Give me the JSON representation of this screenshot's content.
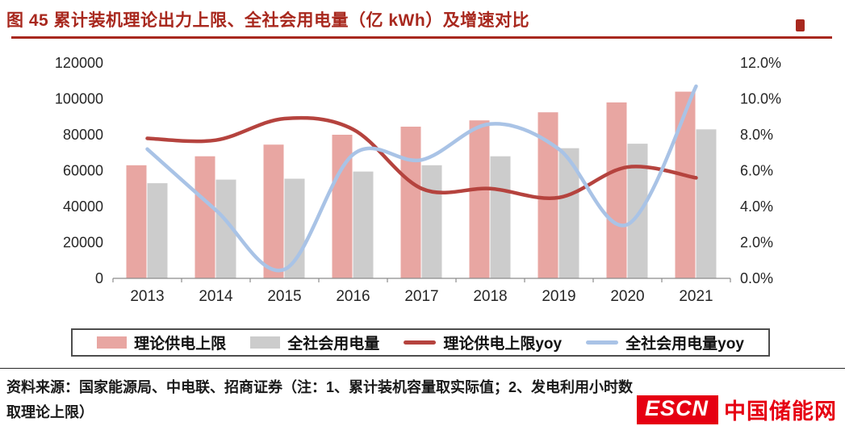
{
  "title": "图 45  累计装机理论出力上限、全社会用电量（亿 kWh）及增速对比",
  "colors": {
    "title_red": "#a8281e",
    "bar_pink": "#e8a6a2",
    "bar_gray": "#cccccc",
    "line_red": "#b5433e",
    "line_blue": "#a9c3e6",
    "logo_red": "#e60012",
    "axis_text": "#262626",
    "axis_line": "#8c8c8c"
  },
  "chart_data": {
    "type": "combo-bar-line",
    "title": "累计装机理论出力上限、全社会用电量（亿 kWh）及增速对比",
    "categories": [
      "2013",
      "2014",
      "2015",
      "2016",
      "2017",
      "2018",
      "2019",
      "2020",
      "2021"
    ],
    "series": [
      {
        "name": "理论供电上限",
        "type": "bar",
        "axis": "left",
        "color": "#e8a6a2",
        "values": [
          63000,
          68000,
          74500,
          80000,
          84500,
          88000,
          92500,
          98000,
          104000
        ]
      },
      {
        "name": "全社会用电量",
        "type": "bar",
        "axis": "left",
        "color": "#cccccc",
        "values": [
          53000,
          55000,
          55500,
          59500,
          63000,
          68000,
          72500,
          75000,
          83000
        ]
      },
      {
        "name": "理论供电上限yoy",
        "type": "line",
        "axis": "right",
        "color": "#b5433e",
        "values": [
          7.8,
          7.7,
          8.9,
          8.3,
          5.0,
          5.0,
          4.5,
          6.2,
          5.6
        ]
      },
      {
        "name": "全社会用电量yoy",
        "type": "line",
        "axis": "right",
        "color": "#a9c3e6",
        "values": [
          7.2,
          3.8,
          0.5,
          6.9,
          6.6,
          8.6,
          7.2,
          3.0,
          10.7
        ]
      }
    ],
    "left_axis": {
      "min": 0,
      "max": 120000,
      "step": 20000
    },
    "right_axis": {
      "min": 0,
      "max": 12,
      "step": 2,
      "decimals": 1,
      "suffix": "%"
    },
    "grid": false,
    "legend_position": "bottom"
  },
  "legend": {
    "items": [
      {
        "label": "理论供电上限",
        "swatch": "bar",
        "color": "#e8a6a2"
      },
      {
        "label": "全社会用电量",
        "swatch": "bar",
        "color": "#cccccc"
      },
      {
        "label": "理论供电上限yoy",
        "swatch": "line",
        "color": "#b5433e"
      },
      {
        "label": "全社会用电量yoy",
        "swatch": "line",
        "color": "#a9c3e6"
      }
    ]
  },
  "footer": {
    "source_text": "资料来源：国家能源局、中电联、招商证券（注：1、累计装机容量取实际值；2、发电利用小时数取理论上限）",
    "logo_escn": "ESCN",
    "logo_cn": "中国储能网"
  }
}
